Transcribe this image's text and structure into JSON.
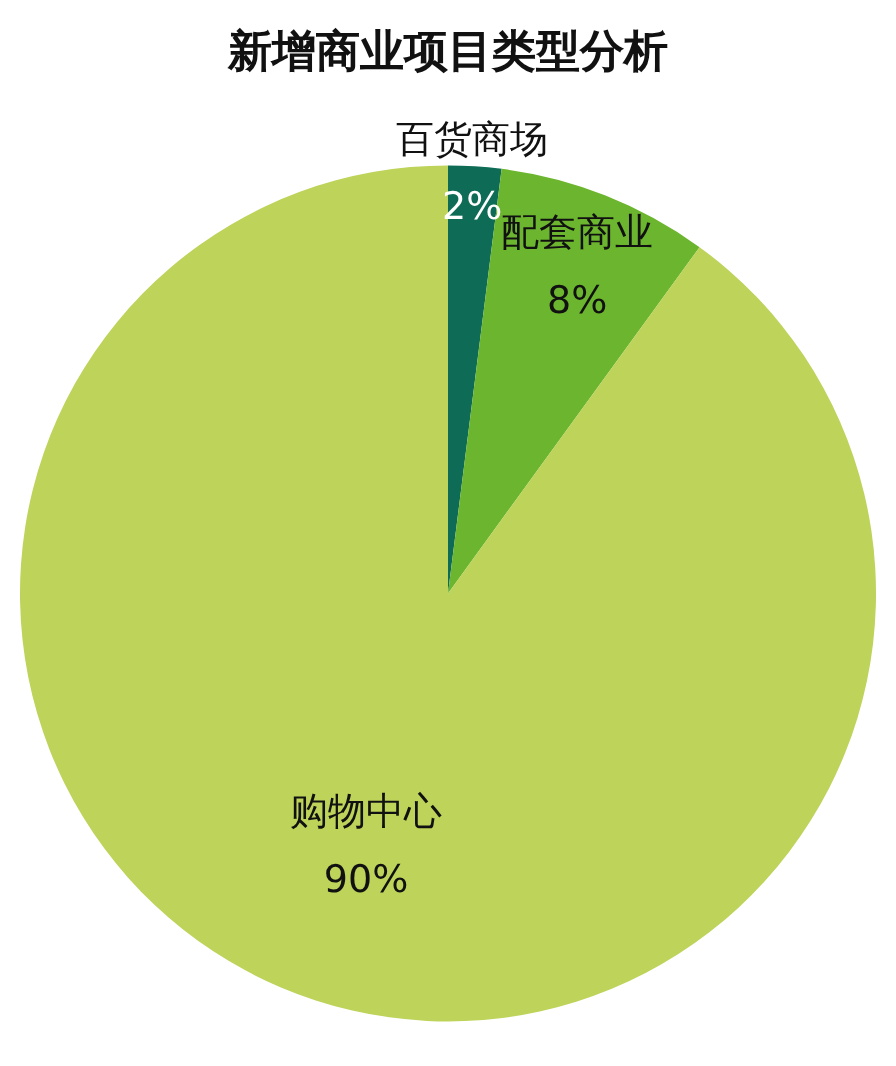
{
  "chart_data": {
    "type": "pie",
    "title": "新增商业项目类型分析",
    "categories": [
      "百货商场",
      "配套商业",
      "购物中心"
    ],
    "values": [
      2,
      8,
      90
    ],
    "value_labels": [
      "2%",
      "8%",
      "90%"
    ],
    "colors": [
      "#0e6b55",
      "#6cb52e",
      "#bdd35a"
    ],
    "legend": false
  }
}
